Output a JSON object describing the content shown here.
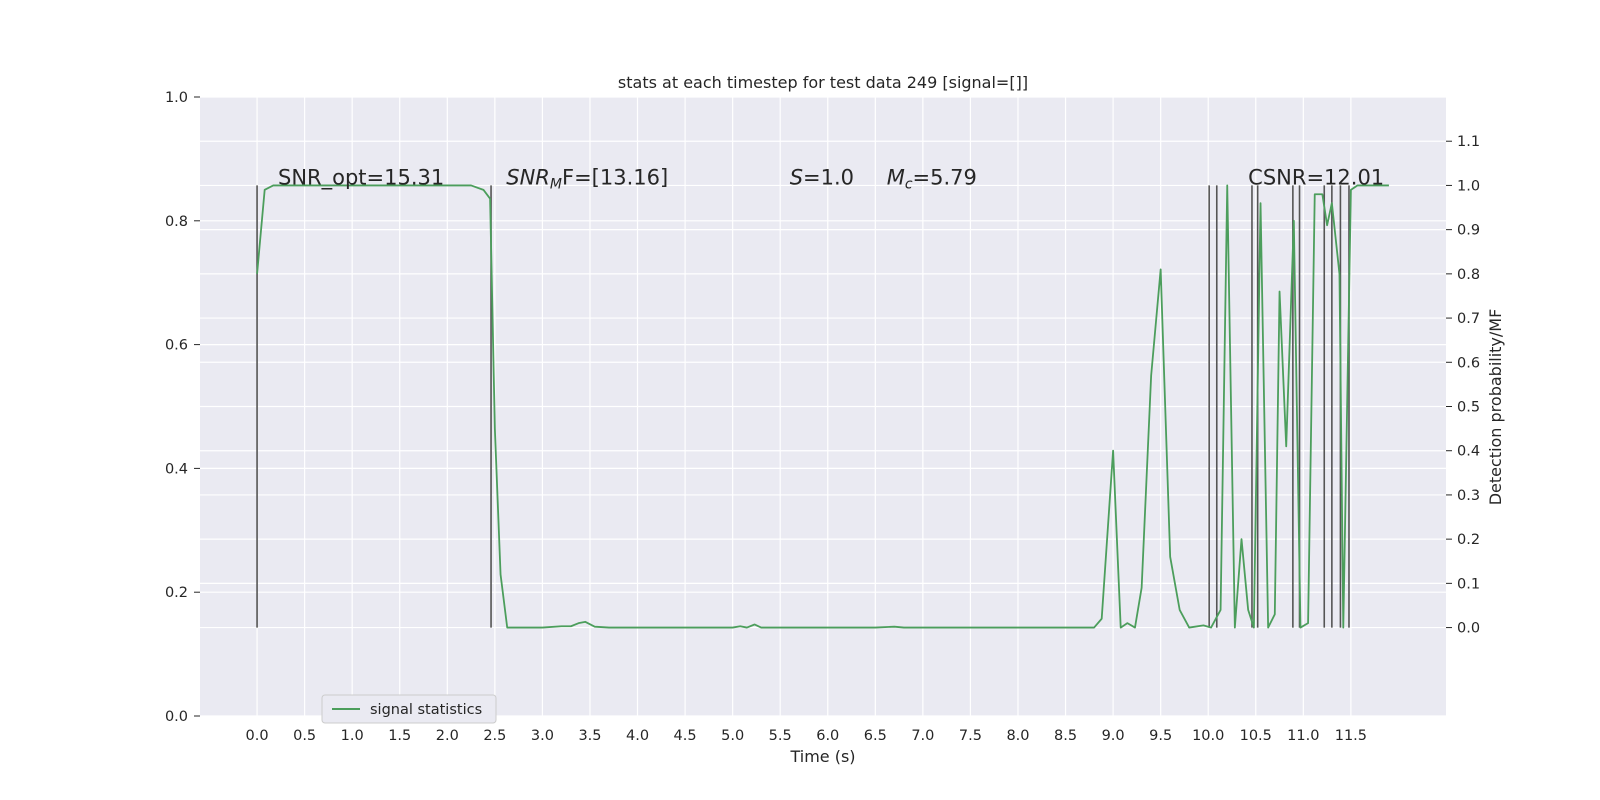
{
  "chart_data": {
    "type": "line",
    "title": "stats at each timestep for test data 249 [signal=[]]",
    "xlabel": "Time (s)",
    "ylabel_left": "",
    "ylabel_right": "Detection probability/MF",
    "xlim": [
      -0.6,
      12.5
    ],
    "ylim_left": [
      0.0,
      1.0
    ],
    "ylim_right": [
      -0.2,
      1.2
    ],
    "x_ticks": [
      0.0,
      0.5,
      1.0,
      1.5,
      2.0,
      2.5,
      3.0,
      3.5,
      4.0,
      4.5,
      5.0,
      5.5,
      6.0,
      6.5,
      7.0,
      7.5,
      8.0,
      8.5,
      9.0,
      9.5,
      10.0,
      10.5,
      11.0,
      11.5
    ],
    "x_tick_labels": [
      "0.0",
      "0.5",
      "1.0",
      "1.5",
      "2.0",
      "2.5",
      "3.0",
      "3.5",
      "4.0",
      "4.5",
      "5.0",
      "5.5",
      "6.0",
      "6.5",
      "7.0",
      "7.5",
      "8.0",
      "8.5",
      "9.0",
      "9.5",
      "10.0",
      "10.5",
      "11.0",
      "11.5"
    ],
    "left_ticks": [
      0.0,
      0.2,
      0.4,
      0.6,
      0.8,
      1.0
    ],
    "left_tick_labels": [
      "0.0",
      "0.2",
      "0.4",
      "0.6",
      "0.8",
      "1.0"
    ],
    "right_ticks": [
      0.0,
      0.1,
      0.2,
      0.3,
      0.4,
      0.5,
      0.6,
      0.7,
      0.8,
      0.9,
      1.0,
      1.1
    ],
    "right_tick_labels": [
      "0.0",
      "0.1",
      "0.2",
      "0.3",
      "0.4",
      "0.5",
      "0.6",
      "0.7",
      "0.8",
      "0.9",
      "1.0",
      "1.1"
    ],
    "grid": true,
    "legend_position": "bottom-left",
    "series": [
      {
        "name": "signal statistics",
        "color": "#4c9e5c",
        "x": [
          0.0,
          0.08,
          0.17,
          0.25,
          0.5,
          1.0,
          1.5,
          2.0,
          2.25,
          2.38,
          2.45,
          2.5,
          2.56,
          2.63,
          3.0,
          3.2,
          3.3,
          3.38,
          3.45,
          3.55,
          3.7,
          4.0,
          4.5,
          5.0,
          5.08,
          5.15,
          5.23,
          5.3,
          5.45,
          6.0,
          6.5,
          6.7,
          6.8,
          7.0,
          7.5,
          8.0,
          8.5,
          8.8,
          8.88,
          9.0,
          9.08,
          9.15,
          9.23,
          9.3,
          9.4,
          9.5,
          9.6,
          9.7,
          9.8,
          9.95,
          10.03,
          10.13,
          10.2,
          10.28,
          10.35,
          10.42,
          10.48,
          10.55,
          10.63,
          10.7,
          10.75,
          10.82,
          10.9,
          10.97,
          11.05,
          11.12,
          11.2,
          11.25,
          11.3,
          11.38,
          11.42,
          11.5,
          11.57,
          11.65,
          11.75,
          11.9
        ],
        "y": [
          0.8,
          0.99,
          1.0,
          1.0,
          1.0,
          1.0,
          1.0,
          1.0,
          1.0,
          0.99,
          0.97,
          0.45,
          0.12,
          0.0,
          0.0,
          0.003,
          0.003,
          0.01,
          0.013,
          0.002,
          0.0,
          0.0,
          0.0,
          0.0,
          0.003,
          0.0,
          0.007,
          0.0,
          0.0,
          0.0,
          0.0,
          0.002,
          0.0,
          0.0,
          0.0,
          0.0,
          0.0,
          0.0,
          0.02,
          0.4,
          0.0,
          0.01,
          0.0,
          0.09,
          0.57,
          0.81,
          0.16,
          0.04,
          0.0,
          0.005,
          0.0,
          0.04,
          1.0,
          0.0,
          0.2,
          0.04,
          0.0,
          0.96,
          0.0,
          0.03,
          0.76,
          0.41,
          0.92,
          0.0,
          0.01,
          0.98,
          0.98,
          0.91,
          0.96,
          0.8,
          0.0,
          0.99,
          1.0,
          1.0,
          1.0,
          1.0
        ]
      }
    ],
    "vertical_markers_x": [
      0.0,
      2.46,
      10.01,
      10.09,
      10.46,
      10.52,
      10.89,
      10.96,
      11.22,
      11.3,
      11.39,
      11.48
    ],
    "annotations": [
      {
        "x_data": 0.22,
        "text": "SNR_opt=15.31",
        "italic_sub": false
      },
      {
        "x_data": 2.62,
        "text_main": "SNR",
        "text_sub": "M",
        "text_rest": "F=[13.16]",
        "italic_sub": true
      },
      {
        "x_data": 5.6,
        "text_main": "S",
        "text_rest": "=1.0",
        "italic_sub": true
      },
      {
        "x_data": 6.62,
        "text_main": "M",
        "text_sub": "c",
        "text_rest": "=5.79",
        "italic_sub": true
      },
      {
        "x_data": 10.42,
        "text": "CSNR=12.01",
        "italic_sub": false
      }
    ]
  }
}
